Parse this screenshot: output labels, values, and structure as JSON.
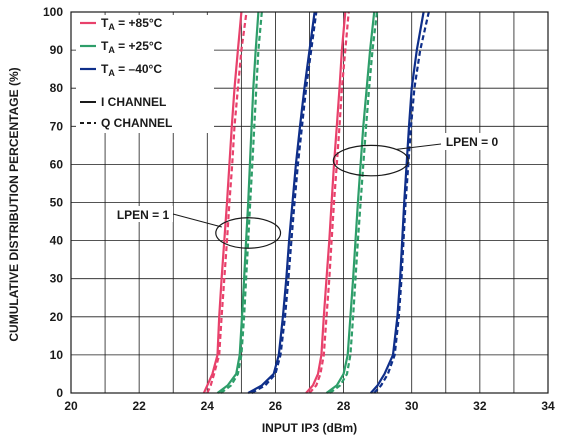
{
  "chart_data": {
    "type": "line",
    "title": "",
    "xlabel": "INPUT IP3 (dBm)",
    "ylabel": "CUMULATIVE DISTRIBUTION PERCENTAGE (%)",
    "xlim": [
      20,
      34
    ],
    "ylim": [
      0,
      100
    ],
    "x_ticks": [
      "20",
      "22",
      "24",
      "26",
      "28",
      "30",
      "32",
      "34"
    ],
    "y_ticks": [
      "0",
      "10",
      "20",
      "30",
      "40",
      "50",
      "60",
      "70",
      "80",
      "90",
      "100"
    ],
    "grid": true,
    "legend_position": "top-left",
    "legend": {
      "temperatures": [
        {
          "prefix": "T",
          "sub": "A",
          "suffix": " = +85°C",
          "color": "#e8416b"
        },
        {
          "prefix": "T",
          "sub": "A",
          "suffix": " = +25°C",
          "color": "#2e9e6a"
        },
        {
          "prefix": "T",
          "sub": "A",
          "suffix": " = –40°C",
          "color": "#0f2f8a"
        }
      ],
      "line_styles": [
        {
          "label": "I CHANNEL",
          "style": "solid"
        },
        {
          "label": "Q CHANNEL",
          "style": "dashed"
        }
      ]
    },
    "annotations": [
      {
        "label": "LPEN = 1",
        "ellipse_center": [
          25.2,
          42
        ],
        "ellipse_radius_data": [
          0.95,
          4
        ]
      },
      {
        "label": "LPEN = 0",
        "ellipse_center": [
          28.8,
          61
        ],
        "ellipse_radius_data": [
          1.1,
          4
        ]
      }
    ],
    "series": [
      {
        "temp": "+85°C",
        "lpen": "1",
        "channel": "I",
        "color": "#e8416b",
        "style": "solid",
        "x": [
          23.9,
          24.0,
          24.15,
          24.3,
          24.35,
          24.42,
          24.5,
          24.58,
          24.65,
          24.72,
          24.8,
          24.9,
          25.0
        ],
        "y": [
          0,
          2,
          5,
          10,
          20,
          30,
          40,
          50,
          60,
          70,
          80,
          90,
          100
        ]
      },
      {
        "temp": "+85°C",
        "lpen": "1",
        "channel": "Q",
        "color": "#e8416b",
        "style": "dashed",
        "x": [
          24.0,
          24.1,
          24.2,
          24.35,
          24.42,
          24.5,
          24.58,
          24.65,
          24.73,
          24.8,
          24.9,
          25.0,
          25.15
        ],
        "y": [
          0,
          2,
          5,
          10,
          20,
          30,
          40,
          50,
          60,
          70,
          80,
          90,
          100
        ]
      },
      {
        "temp": "+25°C",
        "lpen": "1",
        "channel": "I",
        "color": "#2e9e6a",
        "style": "solid",
        "x": [
          24.3,
          24.6,
          24.85,
          24.95,
          25.02,
          25.08,
          25.14,
          25.2,
          25.25,
          25.3,
          25.35,
          25.42,
          25.5
        ],
        "y": [
          0,
          2,
          5,
          10,
          20,
          30,
          40,
          50,
          60,
          70,
          80,
          90,
          100
        ]
      },
      {
        "temp": "+25°C",
        "lpen": "1",
        "channel": "Q",
        "color": "#2e9e6a",
        "style": "dashed",
        "x": [
          24.4,
          24.7,
          24.9,
          25.0,
          25.08,
          25.14,
          25.2,
          25.26,
          25.32,
          25.38,
          25.44,
          25.5,
          25.6
        ],
        "y": [
          0,
          2,
          5,
          10,
          20,
          30,
          40,
          50,
          60,
          70,
          80,
          90,
          100
        ]
      },
      {
        "temp": "–40°C",
        "lpen": "1",
        "channel": "I",
        "color": "#0f2f8a",
        "style": "solid",
        "x": [
          25.2,
          25.6,
          25.95,
          26.1,
          26.22,
          26.32,
          26.4,
          26.5,
          26.6,
          26.72,
          26.85,
          27.0,
          27.15
        ],
        "y": [
          0,
          2,
          5,
          10,
          20,
          30,
          40,
          50,
          60,
          70,
          80,
          90,
          100
        ]
      },
      {
        "temp": "–40°C",
        "lpen": "1",
        "channel": "Q",
        "color": "#0f2f8a",
        "style": "dashed",
        "x": [
          25.3,
          25.7,
          26.0,
          26.15,
          26.28,
          26.38,
          26.47,
          26.56,
          26.66,
          26.78,
          26.9,
          27.05,
          27.2
        ],
        "y": [
          0,
          2,
          5,
          10,
          20,
          30,
          40,
          50,
          60,
          70,
          80,
          90,
          100
        ]
      },
      {
        "temp": "+85°C",
        "lpen": "0",
        "channel": "I",
        "color": "#e8416b",
        "style": "solid",
        "x": [
          26.9,
          27.1,
          27.25,
          27.35,
          27.42,
          27.5,
          27.58,
          27.65,
          27.72,
          27.8,
          27.88,
          27.95,
          28.05
        ],
        "y": [
          0,
          2,
          5,
          10,
          20,
          30,
          40,
          50,
          60,
          70,
          80,
          90,
          100
        ]
      },
      {
        "temp": "+85°C",
        "lpen": "0",
        "channel": "Q",
        "color": "#e8416b",
        "style": "dashed",
        "x": [
          27.0,
          27.2,
          27.32,
          27.42,
          27.5,
          27.58,
          27.65,
          27.72,
          27.8,
          27.88,
          27.95,
          28.05,
          28.15
        ],
        "y": [
          0,
          2,
          5,
          10,
          20,
          30,
          40,
          50,
          60,
          70,
          80,
          90,
          100
        ]
      },
      {
        "temp": "+25°C",
        "lpen": "0",
        "channel": "I",
        "color": "#2e9e6a",
        "style": "solid",
        "x": [
          27.5,
          27.8,
          28.0,
          28.12,
          28.2,
          28.28,
          28.35,
          28.42,
          28.5,
          28.58,
          28.68,
          28.78,
          28.9
        ],
        "y": [
          0,
          2,
          5,
          10,
          20,
          30,
          40,
          50,
          60,
          70,
          80,
          90,
          100
        ]
      },
      {
        "temp": "+25°C",
        "lpen": "0",
        "channel": "Q",
        "color": "#2e9e6a",
        "style": "dashed",
        "x": [
          27.6,
          27.9,
          28.1,
          28.2,
          28.28,
          28.35,
          28.42,
          28.5,
          28.58,
          28.66,
          28.75,
          28.85,
          28.98
        ],
        "y": [
          0,
          2,
          5,
          10,
          20,
          30,
          40,
          50,
          60,
          70,
          80,
          90,
          100
        ]
      },
      {
        "temp": "–40°C",
        "lpen": "0",
        "channel": "I",
        "color": "#0f2f8a",
        "style": "solid",
        "x": [
          28.8,
          29.0,
          29.2,
          29.45,
          29.58,
          29.66,
          29.72,
          29.78,
          29.85,
          29.92,
          30.0,
          30.15,
          30.35
        ],
        "y": [
          0,
          2,
          5,
          10,
          20,
          30,
          40,
          50,
          60,
          70,
          80,
          90,
          100
        ]
      },
      {
        "temp": "–40°C",
        "lpen": "0",
        "channel": "Q",
        "color": "#0f2f8a",
        "style": "dashed",
        "x": [
          28.9,
          29.1,
          29.3,
          29.5,
          29.62,
          29.7,
          29.76,
          29.82,
          29.9,
          29.98,
          30.08,
          30.25,
          30.5
        ],
        "y": [
          0,
          2,
          5,
          10,
          20,
          30,
          40,
          50,
          60,
          70,
          80,
          90,
          100
        ]
      }
    ]
  }
}
